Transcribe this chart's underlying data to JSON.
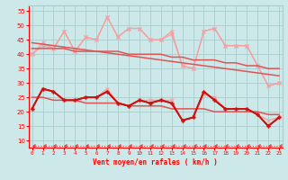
{
  "x": [
    0,
    1,
    2,
    3,
    4,
    5,
    6,
    7,
    8,
    9,
    10,
    11,
    12,
    13,
    14,
    15,
    16,
    17,
    18,
    19,
    20,
    21,
    22,
    23
  ],
  "upper_light1": [
    40,
    44,
    42,
    48,
    41,
    46,
    45,
    53,
    46,
    49,
    49,
    45,
    45,
    48,
    36,
    35,
    48,
    49,
    43,
    43,
    43,
    36,
    29,
    30
  ],
  "upper_light2": [
    40,
    43,
    42,
    48,
    41,
    46,
    45,
    53,
    46,
    49,
    49,
    45,
    45,
    47,
    36,
    35,
    48,
    49,
    43,
    43,
    43,
    36,
    29,
    30
  ],
  "upper_trend": [
    42,
    42,
    42,
    42,
    41,
    41,
    41,
    41,
    41,
    40,
    40,
    40,
    40,
    39,
    39,
    38,
    38,
    38,
    37,
    37,
    36,
    36,
    35,
    35
  ],
  "upper_trend2": [
    44,
    43.5,
    43,
    42.5,
    42,
    41.5,
    41,
    40.5,
    40,
    39.5,
    39,
    38.5,
    38,
    37.5,
    37,
    36.5,
    36,
    35.5,
    35,
    34.5,
    34,
    33.5,
    33,
    32.5
  ],
  "lower_light1": [
    21,
    28,
    27,
    24,
    24,
    25,
    25,
    28,
    23,
    22,
    24,
    24,
    24,
    24,
    17,
    18,
    26,
    25,
    21,
    21,
    21,
    19,
    17,
    18
  ],
  "lower_dark1": [
    21,
    28,
    27,
    24,
    24,
    25,
    25,
    27,
    23,
    22,
    24,
    23,
    24,
    23,
    17,
    18,
    27,
    24,
    21,
    21,
    21,
    19,
    15,
    18
  ],
  "lower_dark2": [
    21,
    28,
    27,
    24,
    24,
    25,
    25,
    27,
    23,
    22,
    24,
    23,
    24,
    23,
    17,
    18,
    27,
    24,
    21,
    21,
    21,
    19,
    15,
    18
  ],
  "lower_trend": [
    25,
    25,
    24,
    24,
    24,
    23,
    23,
    23,
    23,
    22,
    22,
    22,
    22,
    21,
    21,
    21,
    21,
    20,
    20,
    20,
    20,
    20,
    19,
    19
  ],
  "flat_line": [
    8,
    8,
    8,
    8,
    8,
    8,
    8,
    8,
    8,
    8,
    8,
    8,
    8,
    8,
    8,
    8,
    8,
    8,
    8,
    8,
    8,
    8,
    8,
    8
  ],
  "bg_color": "#cce8e8",
  "grid_color": "#aacccc",
  "light_pink": "#f5a0a0",
  "medium_red": "#dd5555",
  "dark_red": "#cc1111",
  "flat_color": "#dd4444",
  "xlabel": "Vent moyen/en rafales ( km/h )",
  "yticks": [
    10,
    15,
    20,
    25,
    30,
    35,
    40,
    45,
    50,
    55
  ],
  "xlim": [
    -0.3,
    23.3
  ],
  "ylim": [
    7.5,
    57
  ]
}
